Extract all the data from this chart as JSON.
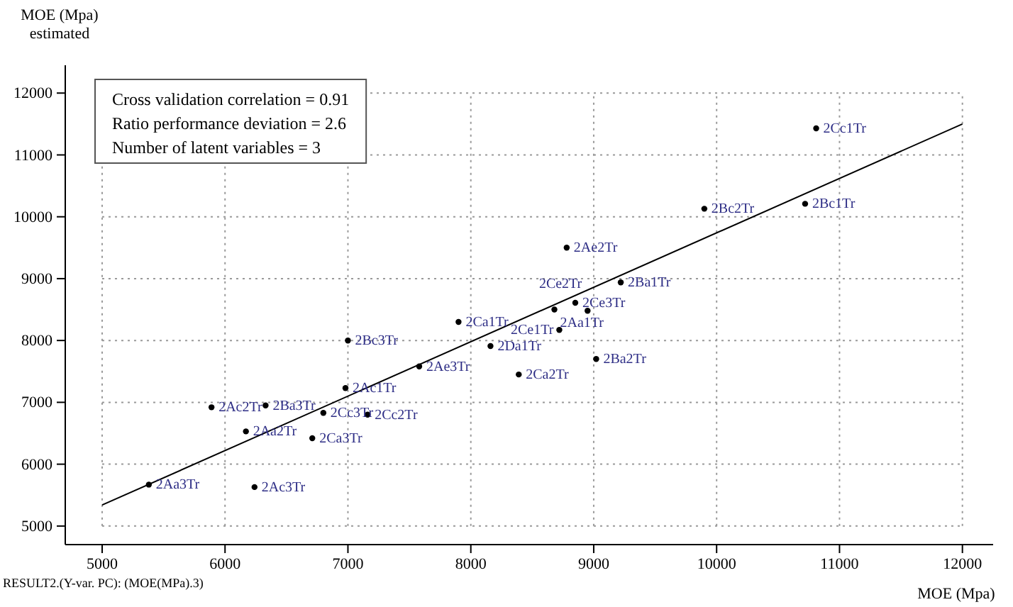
{
  "chart_data": {
    "type": "scatter",
    "xlabel": "MOE (Mpa)",
    "ylabel": "MOE (Mpa)\nestimated",
    "xlim": [
      4700,
      12250
    ],
    "ylim": [
      4700,
      12450
    ],
    "xticks": [
      5000,
      6000,
      7000,
      8000,
      9000,
      10000,
      11000,
      12000
    ],
    "yticks": [
      5000,
      6000,
      7000,
      8000,
      9000,
      10000,
      11000,
      12000
    ],
    "grid": true,
    "series": [
      {
        "marker": "circle",
        "color": "#000000",
        "x": [
          5380,
          6240,
          5890,
          6170,
          6330,
          6800,
          7160,
          6710,
          6980,
          7000,
          7580,
          7900,
          8160,
          8390,
          8780,
          9220,
          8850,
          8680,
          8950,
          8720,
          9020,
          9900,
          10720,
          10810
        ],
        "values": [
          5670,
          5630,
          6920,
          6530,
          6950,
          6830,
          6800,
          6420,
          7230,
          8000,
          7580,
          8300,
          7910,
          7450,
          9500,
          8940,
          8610,
          8500,
          8480,
          8170,
          7700,
          10130,
          10210,
          11430
        ]
      },
      {
        "type": "line",
        "color": "#000000",
        "x": [
          5000,
          12000
        ],
        "values": [
          5340,
          11500
        ]
      }
    ],
    "annotations": [
      "Cross validation correlation = 0.91",
      "Ratio performance deviation = 2.6",
      "Number of latent variables = 3",
      "RESULT2.(Y-var. PC): (MOE(MPa).3)",
      {
        "text": "2Aa3Tr",
        "x": 5380,
        "y": 5670
      },
      {
        "text": "2Ac3Tr",
        "x": 6240,
        "y": 5630
      },
      {
        "text": "2Ac2Tr",
        "x": 5890,
        "y": 6920
      },
      {
        "text": "2Aa2Tr",
        "x": 6170,
        "y": 6530
      },
      {
        "text": "2Ba3Tr",
        "x": 6330,
        "y": 6950
      },
      {
        "text": "2Cc3Tr",
        "x": 6800,
        "y": 6830
      },
      {
        "text": "2Cc2Tr",
        "x": 7160,
        "y": 6800
      },
      {
        "text": "2Ca3Tr",
        "x": 6710,
        "y": 6420
      },
      {
        "text": "2Ac1Tr",
        "x": 6980,
        "y": 7230
      },
      {
        "text": "2Bc3Tr",
        "x": 7000,
        "y": 8000
      },
      {
        "text": "2Ae3Tr",
        "x": 7580,
        "y": 7580
      },
      {
        "text": "2Ca1Tr",
        "x": 7900,
        "y": 8300
      },
      {
        "text": "2Da1Tr",
        "x": 8160,
        "y": 7910
      },
      {
        "text": "2Ca2Tr",
        "x": 8390,
        "y": 7450
      },
      {
        "text": "2Ae2Tr",
        "x": 8780,
        "y": 9500
      },
      {
        "text": "2Ba1Tr",
        "x": 9220,
        "y": 8940
      },
      {
        "text": "2Ce3Tr",
        "x": 8850,
        "y": 8610
      },
      {
        "text": "2Aa1Tr",
        "x": 8680,
        "y": 8500
      },
      {
        "text": "2Ce2Tr",
        "x": 8950,
        "y": 8480
      },
      {
        "text": "2Ce1Tr",
        "x": 8720,
        "y": 8170
      },
      {
        "text": "2Ba2Tr",
        "x": 9020,
        "y": 7700
      },
      {
        "text": "2Bc2Tr",
        "x": 9900,
        "y": 10130
      },
      {
        "text": "2Bc1Tr",
        "x": 10720,
        "y": 10210
      },
      {
        "text": "2Cc1Tr",
        "x": 10810,
        "y": 11430
      }
    ]
  }
}
